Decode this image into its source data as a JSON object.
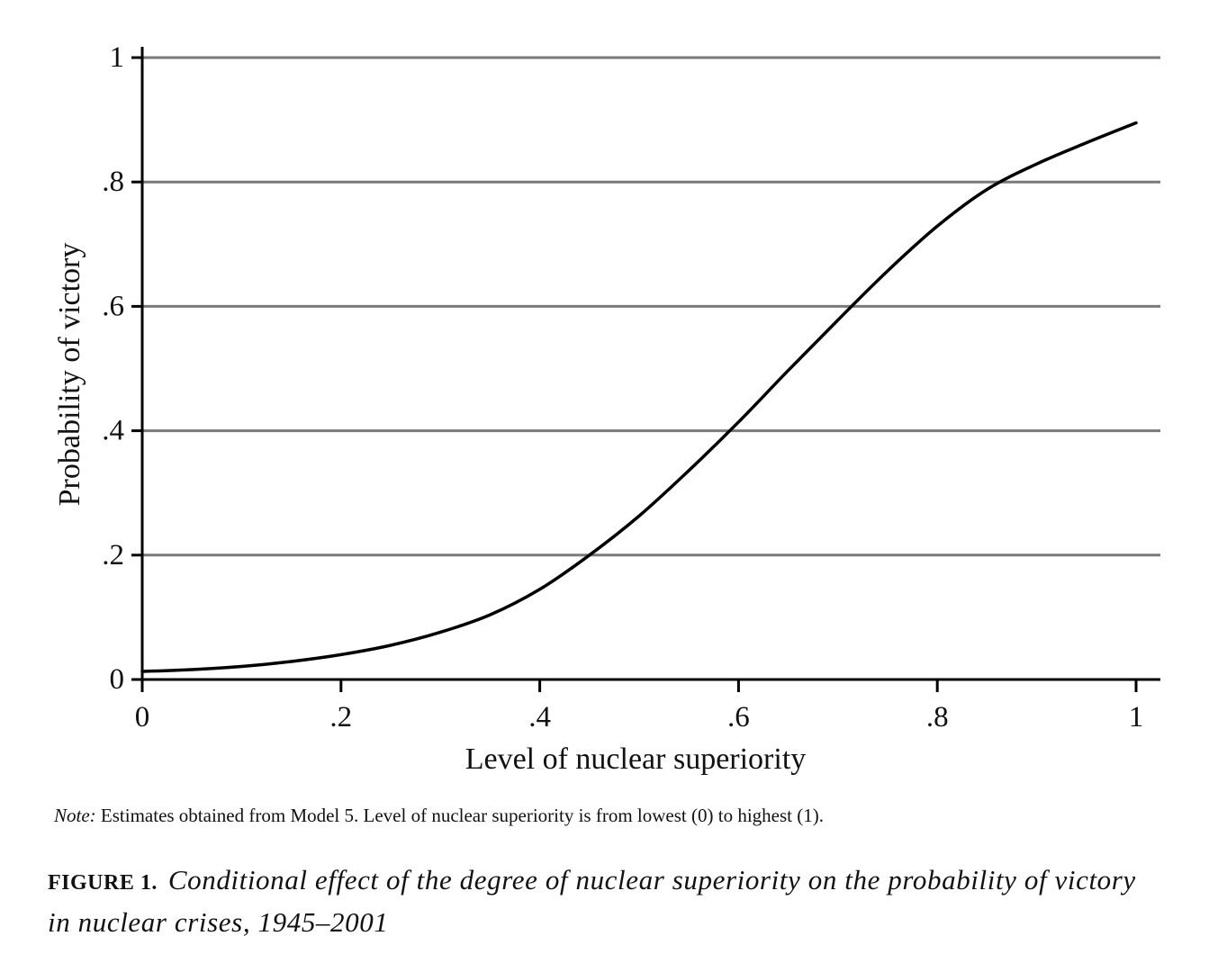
{
  "chart_data": {
    "type": "line",
    "title": "",
    "xlabel": "Level of nuclear superiority",
    "ylabel": "Probability of victory",
    "xlim": [
      0,
      1
    ],
    "ylim": [
      0,
      1
    ],
    "xticks": [
      0,
      0.2,
      0.4,
      0.6,
      0.8,
      1
    ],
    "xtick_labels": [
      "0",
      ".2",
      ".4",
      ".6",
      ".8",
      "1"
    ],
    "yticks": [
      0,
      0.2,
      0.4,
      0.6,
      0.8,
      1
    ],
    "ytick_labels": [
      "0",
      ".2",
      ".4",
      ".6",
      ".8",
      "1"
    ],
    "grid": "horizontal",
    "legend": "none",
    "colors": {
      "line": "#000000",
      "grid": "#7a7a7a",
      "axis": "#000000"
    },
    "series": [
      {
        "x": [
          0,
          0.05,
          0.1,
          0.15,
          0.2,
          0.25,
          0.3,
          0.35,
          0.4,
          0.45,
          0.5,
          0.55,
          0.6,
          0.65,
          0.7,
          0.75,
          0.8,
          0.85,
          0.9,
          0.95,
          1
        ],
        "values": [
          0.013,
          0.016,
          0.021,
          0.029,
          0.04,
          0.055,
          0.076,
          0.104,
          0.145,
          0.2,
          0.263,
          0.336,
          0.414,
          0.497,
          0.578,
          0.657,
          0.729,
          0.788,
          0.829,
          0.863,
          0.895
        ]
      }
    ]
  },
  "note": {
    "label": "Note:",
    "text": " Estimates obtained from Model 5. Level of nuclear superiority is from lowest (0) to highest (1)."
  },
  "caption": {
    "label": "FIGURE 1.",
    "title": "Conditional effect of the degree of nuclear superiority on the probability of victory in nuclear crises, 1945–2001"
  }
}
